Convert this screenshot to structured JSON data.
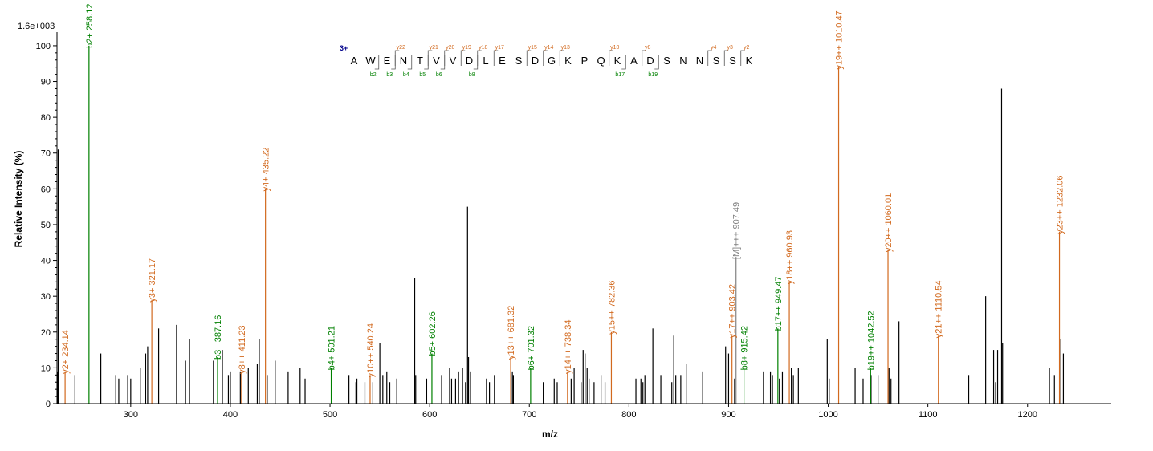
{
  "chart_data": {
    "type": "bar",
    "subtype": "mass-spectrum",
    "scale_label": "1.6e+003",
    "xlabel": "m/z",
    "ylabel": "Relative   Intensity (%)",
    "xlim": [
      226,
      1284
    ],
    "ylim": [
      0,
      102
    ],
    "xticks": [
      300,
      400,
      500,
      600,
      700,
      800,
      900,
      1000,
      1100,
      1200
    ],
    "yticks": [
      0,
      10,
      20,
      30,
      40,
      50,
      60,
      70,
      80,
      90,
      100
    ],
    "grid": false,
    "colors": {
      "b": "#008000",
      "y": "#d2691e",
      "precursor": "#808080",
      "unlabeled": "#000000"
    },
    "annotated_peaks": [
      {
        "label": "y2+ 234.14",
        "ion": "y",
        "x": 234.14,
        "y": 9
      },
      {
        "label": "b2+ 258.12",
        "ion": "b",
        "x": 258.12,
        "y": 100
      },
      {
        "label": "y3+ 321.17",
        "ion": "y",
        "x": 321.17,
        "y": 29
      },
      {
        "label": "b3+ 387.16",
        "ion": "b",
        "x": 387.16,
        "y": 13
      },
      {
        "label": "y8++ 411.23",
        "ion": "y",
        "x": 411.23,
        "y": 9
      },
      {
        "label": "y4+ 435.22",
        "ion": "y",
        "x": 435.22,
        "y": 60
      },
      {
        "label": "b4+ 501.21",
        "ion": "b",
        "x": 501.21,
        "y": 10
      },
      {
        "label": "y10++ 540.24",
        "ion": "y",
        "x": 540.24,
        "y": 8
      },
      {
        "label": "b5+ 602.26",
        "ion": "b",
        "x": 602.26,
        "y": 14
      },
      {
        "label": "y13++ 681.32",
        "ion": "y",
        "x": 681.32,
        "y": 13
      },
      {
        "label": "b6+ 701.32",
        "ion": "b",
        "x": 701.32,
        "y": 10
      },
      {
        "label": "y14++ 738.34",
        "ion": "y",
        "x": 738.34,
        "y": 9
      },
      {
        "label": "y15++ 782.36",
        "ion": "y",
        "x": 782.36,
        "y": 20
      },
      {
        "label": "y17++ 903.42",
        "ion": "y",
        "x": 903.42,
        "y": 19
      },
      {
        "label": "[M]+++ 907.49",
        "ion": "precursor",
        "x": 907.49,
        "y": 41
      },
      {
        "label": "b8+ 915.42",
        "ion": "b",
        "x": 915.42,
        "y": 10
      },
      {
        "label": "b17++ 949.47",
        "ion": "b",
        "x": 949.47,
        "y": 21
      },
      {
        "label": "y18++ 960.93",
        "ion": "y",
        "x": 960.93,
        "y": 34
      },
      {
        "label": "y19++ 1010.47",
        "ion": "y",
        "x": 1010.47,
        "y": 94
      },
      {
        "label": "b19++ 1042.52",
        "ion": "b",
        "x": 1042.52,
        "y": 10
      },
      {
        "label": "y20++ 1060.01",
        "ion": "y",
        "x": 1060.01,
        "y": 43
      },
      {
        "label": "y21++ 1110.54",
        "ion": "y",
        "x": 1110.54,
        "y": 19
      },
      {
        "label": "y23++ 1232.06",
        "ion": "y",
        "x": 1232.06,
        "y": 48
      }
    ],
    "unlabeled_peaks": [
      {
        "x": 226.5,
        "y": 9
      },
      {
        "x": 227.2,
        "y": 71
      },
      {
        "x": 244,
        "y": 8
      },
      {
        "x": 270,
        "y": 14
      },
      {
        "x": 285,
        "y": 8
      },
      {
        "x": 288,
        "y": 7
      },
      {
        "x": 297,
        "y": 8
      },
      {
        "x": 300,
        "y": 7
      },
      {
        "x": 310,
        "y": 10
      },
      {
        "x": 315,
        "y": 14
      },
      {
        "x": 317,
        "y": 16
      },
      {
        "x": 328,
        "y": 21
      },
      {
        "x": 346,
        "y": 22
      },
      {
        "x": 355,
        "y": 12
      },
      {
        "x": 359,
        "y": 18
      },
      {
        "x": 383,
        "y": 12
      },
      {
        "x": 392,
        "y": 15
      },
      {
        "x": 398,
        "y": 8
      },
      {
        "x": 400,
        "y": 9
      },
      {
        "x": 410,
        "y": 9
      },
      {
        "x": 418,
        "y": 10
      },
      {
        "x": 427,
        "y": 11
      },
      {
        "x": 429,
        "y": 18
      },
      {
        "x": 437,
        "y": 8
      },
      {
        "x": 445,
        "y": 12
      },
      {
        "x": 458,
        "y": 9
      },
      {
        "x": 470,
        "y": 10
      },
      {
        "x": 475,
        "y": 7
      },
      {
        "x": 519,
        "y": 8
      },
      {
        "x": 526,
        "y": 6
      },
      {
        "x": 527,
        "y": 7
      },
      {
        "x": 535,
        "y": 6
      },
      {
        "x": 543,
        "y": 6
      },
      {
        "x": 550,
        "y": 17
      },
      {
        "x": 553,
        "y": 8
      },
      {
        "x": 557,
        "y": 9
      },
      {
        "x": 560,
        "y": 6
      },
      {
        "x": 567,
        "y": 7
      },
      {
        "x": 585,
        "y": 35
      },
      {
        "x": 586,
        "y": 8
      },
      {
        "x": 597,
        "y": 7
      },
      {
        "x": 612,
        "y": 8
      },
      {
        "x": 620,
        "y": 10
      },
      {
        "x": 622,
        "y": 7
      },
      {
        "x": 626,
        "y": 7
      },
      {
        "x": 629,
        "y": 9
      },
      {
        "x": 633,
        "y": 10
      },
      {
        "x": 636,
        "y": 6
      },
      {
        "x": 638,
        "y": 55
      },
      {
        "x": 639,
        "y": 13
      },
      {
        "x": 641,
        "y": 9
      },
      {
        "x": 657,
        "y": 7
      },
      {
        "x": 660,
        "y": 6
      },
      {
        "x": 665,
        "y": 8
      },
      {
        "x": 683,
        "y": 9
      },
      {
        "x": 684,
        "y": 8
      },
      {
        "x": 714,
        "y": 6
      },
      {
        "x": 725,
        "y": 7
      },
      {
        "x": 728,
        "y": 6
      },
      {
        "x": 742,
        "y": 7
      },
      {
        "x": 745,
        "y": 10
      },
      {
        "x": 752,
        "y": 6
      },
      {
        "x": 754,
        "y": 15
      },
      {
        "x": 756,
        "y": 14
      },
      {
        "x": 758,
        "y": 10
      },
      {
        "x": 760,
        "y": 7
      },
      {
        "x": 765,
        "y": 6
      },
      {
        "x": 772,
        "y": 8
      },
      {
        "x": 776,
        "y": 6
      },
      {
        "x": 807,
        "y": 7
      },
      {
        "x": 812,
        "y": 7
      },
      {
        "x": 814,
        "y": 6
      },
      {
        "x": 816,
        "y": 8
      },
      {
        "x": 824,
        "y": 21
      },
      {
        "x": 832,
        "y": 8
      },
      {
        "x": 843,
        "y": 6
      },
      {
        "x": 845,
        "y": 19
      },
      {
        "x": 847,
        "y": 8
      },
      {
        "x": 852,
        "y": 8
      },
      {
        "x": 858,
        "y": 11
      },
      {
        "x": 874,
        "y": 9
      },
      {
        "x": 897,
        "y": 16
      },
      {
        "x": 900,
        "y": 14
      },
      {
        "x": 906,
        "y": 7
      },
      {
        "x": 935,
        "y": 9
      },
      {
        "x": 942,
        "y": 9
      },
      {
        "x": 944,
        "y": 8
      },
      {
        "x": 951,
        "y": 7
      },
      {
        "x": 954,
        "y": 9
      },
      {
        "x": 963,
        "y": 10
      },
      {
        "x": 965,
        "y": 8
      },
      {
        "x": 970,
        "y": 10
      },
      {
        "x": 999,
        "y": 18
      },
      {
        "x": 1001,
        "y": 7
      },
      {
        "x": 1027,
        "y": 10
      },
      {
        "x": 1035,
        "y": 7
      },
      {
        "x": 1043,
        "y": 8
      },
      {
        "x": 1050,
        "y": 8
      },
      {
        "x": 1061,
        "y": 10
      },
      {
        "x": 1063,
        "y": 7
      },
      {
        "x": 1071,
        "y": 23
      },
      {
        "x": 1141,
        "y": 8
      },
      {
        "x": 1158,
        "y": 30
      },
      {
        "x": 1166,
        "y": 15
      },
      {
        "x": 1168,
        "y": 6
      },
      {
        "x": 1170,
        "y": 15
      },
      {
        "x": 1174,
        "y": 88
      },
      {
        "x": 1175,
        "y": 17
      },
      {
        "x": 1222,
        "y": 10
      },
      {
        "x": 1227,
        "y": 8
      },
      {
        "x": 1232.3,
        "y": 18
      },
      {
        "x": 1236,
        "y": 14
      }
    ]
  },
  "sequence": {
    "charge": "3+",
    "residues": [
      "A",
      "W",
      "E",
      "N",
      "T",
      "V",
      "V",
      "D",
      "L",
      "E",
      "S",
      "D",
      "G",
      "K",
      "P",
      "Q",
      "K",
      "A",
      "D",
      "S",
      "N",
      "N",
      "S",
      "S",
      "K"
    ],
    "y_ions": [
      {
        "after": 3,
        "label": "y22"
      },
      {
        "after": 5,
        "label": "y21"
      },
      {
        "after": 6,
        "label": "y20"
      },
      {
        "after": 7,
        "label": "y19"
      },
      {
        "after": 8,
        "label": "y18"
      },
      {
        "after": 9,
        "label": "y17"
      },
      {
        "after": 11,
        "label": "y15"
      },
      {
        "after": 12,
        "label": "y14"
      },
      {
        "after": 13,
        "label": "y13"
      },
      {
        "after": 16,
        "label": "y10"
      },
      {
        "after": 18,
        "label": "y8"
      },
      {
        "after": 22,
        "label": "y4"
      },
      {
        "after": 23,
        "label": "y3"
      },
      {
        "after": 24,
        "label": "y2"
      }
    ],
    "b_ions": [
      {
        "after": 2,
        "label": "b2"
      },
      {
        "after": 3,
        "label": "b3"
      },
      {
        "after": 4,
        "label": "b4"
      },
      {
        "after": 5,
        "label": "b5"
      },
      {
        "after": 6,
        "label": "b6"
      },
      {
        "after": 8,
        "label": "b8"
      },
      {
        "after": 17,
        "label": "b17"
      },
      {
        "after": 19,
        "label": "b19"
      }
    ]
  }
}
